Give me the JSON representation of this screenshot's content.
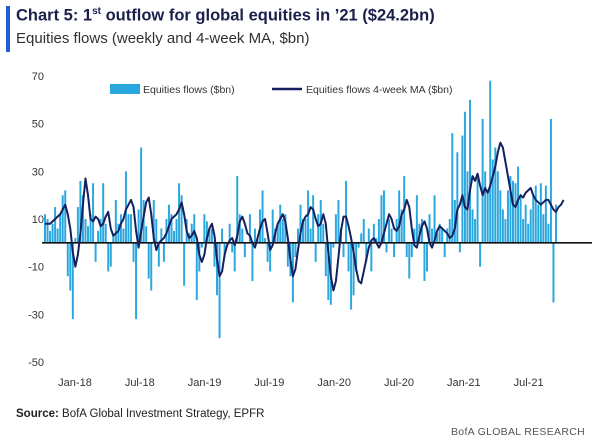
{
  "header": {
    "title_before": "Chart 5: 1",
    "title_sup": "st",
    "title_after": " outflow for global equities in ’21 ($24.2bn)",
    "subtitle": "Equities flows (weekly and 4-week MA, $bn)"
  },
  "footer": {
    "source_label": "Source:",
    "source_text": " BofA Global Investment Strategy, EPFR",
    "brand": "BofA GLOBAL RESEARCH"
  },
  "colors": {
    "bars": "#2aa7df",
    "line": "#16205e",
    "zero_line": "#111111",
    "accent": "#1f5fd6"
  },
  "chart_data": {
    "type": "bar",
    "ylim": [
      -50,
      70
    ],
    "yticks": [
      70,
      50,
      30,
      10,
      -10,
      -30,
      -50
    ],
    "xtick_labels": [
      "Jan-18",
      "Jul-18",
      "Jan-19",
      "Jul-19",
      "Jan-20",
      "Jul-20",
      "Jan-21",
      "Jul-21"
    ],
    "legend": {
      "placement": "top-center",
      "bars_label": "Equities flows ($bn)",
      "line_label": "Equities flows 4-week MA ($bn)"
    },
    "series": [
      {
        "name": "Equities flows ($bn)",
        "type": "bar",
        "values": [
          12,
          10,
          5,
          8,
          15,
          6,
          12,
          20,
          22,
          -14,
          -20,
          -32,
          2,
          15,
          26,
          20,
          10,
          7,
          12,
          25,
          -8,
          5,
          10,
          25,
          8,
          -12,
          -10,
          4,
          18,
          8,
          12,
          6,
          30,
          12,
          12,
          -8,
          -32,
          14,
          40,
          18,
          7,
          -15,
          -20,
          18,
          10,
          -10,
          6,
          -8,
          10,
          16,
          12,
          5,
          10,
          25,
          20,
          -18,
          10,
          4,
          8,
          12,
          -24,
          -12,
          -2,
          12,
          9,
          6,
          6,
          -10,
          -22,
          -40,
          6,
          -6,
          0,
          8,
          -4,
          -12,
          28,
          12,
          6,
          -6,
          0,
          12,
          -16,
          6,
          2,
          14,
          22,
          2,
          -8,
          -12,
          14,
          6,
          8,
          16,
          10,
          12,
          -10,
          -14,
          -25,
          -6,
          6,
          16,
          10,
          10,
          22,
          6,
          20,
          -8,
          12,
          18,
          8,
          -14,
          -24,
          -26,
          -2,
          12,
          18,
          6,
          -6,
          26,
          -12,
          -28,
          -22,
          -12,
          -2,
          4,
          10,
          -8,
          6,
          -12,
          8,
          2,
          10,
          20,
          22,
          -4,
          10,
          6,
          -6,
          10,
          22,
          14,
          28,
          -6,
          -15,
          -6,
          6,
          20,
          8,
          10,
          -16,
          -12,
          12,
          6,
          20,
          4,
          8,
          6,
          -6,
          6,
          10,
          46,
          18,
          38,
          -4,
          45,
          55,
          30,
          60,
          14,
          10,
          28,
          -10,
          52,
          30,
          22,
          68,
          35,
          40,
          30,
          22,
          14,
          10,
          22,
          28,
          26,
          25,
          32,
          20,
          10,
          16,
          8,
          14,
          20,
          24,
          16,
          25,
          12,
          24,
          8,
          52,
          -25,
          16
        ]
      },
      {
        "name": "Equities flows 4-week MA ($bn)",
        "type": "line",
        "values": [
          8,
          8,
          8,
          9,
          10,
          11,
          12,
          14,
          16,
          12,
          6,
          -4,
          -10,
          -5,
          4,
          16,
          27,
          20,
          10,
          9,
          11,
          10,
          7,
          8,
          11,
          13,
          6,
          3,
          4,
          5,
          8,
          10,
          14,
          16,
          18,
          15,
          5,
          -2,
          5,
          11,
          17,
          19,
          12,
          2,
          -3,
          0,
          1,
          2,
          4,
          7,
          10,
          11,
          12,
          14,
          17,
          12,
          5,
          2,
          3,
          5,
          2,
          -5,
          -8,
          -5,
          2,
          6,
          8,
          3,
          -7,
          -14,
          -12,
          -5,
          -1,
          1,
          2,
          -1,
          3,
          9,
          11,
          8,
          4,
          3,
          0,
          -2,
          2,
          6,
          9,
          10,
          4,
          -3,
          -1,
          4,
          8,
          10,
          12,
          9,
          2,
          -7,
          -14,
          -11,
          -3,
          4,
          9,
          11,
          12,
          15,
          14,
          10,
          7,
          8,
          12,
          8,
          -4,
          -14,
          -20,
          -16,
          -6,
          5,
          11,
          11,
          7,
          2,
          -4,
          -11,
          -16,
          -17,
          -12,
          -7,
          -2,
          1,
          2,
          0,
          -2,
          0,
          4,
          8,
          12,
          10,
          6,
          5,
          7,
          12,
          14,
          18,
          15,
          6,
          -1,
          -2,
          3,
          7,
          9,
          6,
          0,
          -2,
          1,
          5,
          7,
          6,
          5,
          4,
          2,
          3,
          6,
          14,
          16,
          20,
          15,
          14,
          22,
          28,
          26,
          29,
          24,
          20,
          23,
          21,
          24,
          28,
          32,
          38,
          42,
          40,
          34,
          28,
          22,
          16,
          15,
          18,
          20,
          19,
          21,
          22,
          23,
          20,
          18,
          17,
          16,
          17,
          18,
          18,
          16,
          14,
          13,
          15,
          16,
          18
        ]
      }
    ]
  }
}
